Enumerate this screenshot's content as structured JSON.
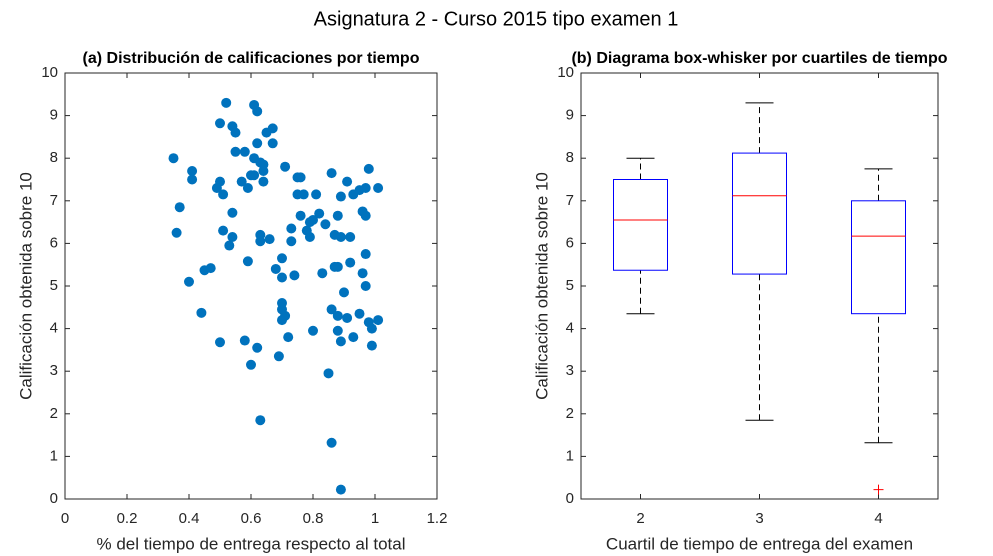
{
  "title": "Asignatura 2 - Curso 2015 tipo examen 1",
  "chart_data": [
    {
      "type": "scatter",
      "title": "(a) Distribución de calificaciones por tiempo",
      "x_label": "% del tiempo de entrega respecto al total",
      "y_label": "Calificación obtenida sobre 10",
      "color": "#0072bd",
      "x": [
        0.35,
        0.36,
        0.37,
        0.4,
        0.41,
        0.41,
        0.44,
        0.45,
        0.47,
        0.49,
        0.5,
        0.5,
        0.5,
        0.51,
        0.51,
        0.52,
        0.53,
        0.54,
        0.54,
        0.54,
        0.55,
        0.55,
        0.57,
        0.58,
        0.58,
        0.59,
        0.59,
        0.6,
        0.6,
        0.61,
        0.61,
        0.61,
        0.62,
        0.62,
        0.62,
        0.63,
        0.63,
        0.63,
        0.63,
        0.64,
        0.64,
        0.64,
        0.65,
        0.66,
        0.67,
        0.67,
        0.68,
        0.69,
        0.7,
        0.7,
        0.7,
        0.7,
        0.7,
        0.71,
        0.71,
        0.72,
        0.73,
        0.73,
        0.74,
        0.75,
        0.76,
        0.75,
        0.76,
        0.77,
        0.78,
        0.79,
        0.79,
        0.8,
        0.8,
        0.81,
        0.82,
        0.83,
        0.84,
        0.85,
        0.86,
        0.86,
        0.86,
        0.87,
        0.87,
        0.88,
        0.88,
        0.88,
        0.88,
        0.89,
        0.89,
        0.89,
        0.89,
        0.9,
        0.91,
        0.91,
        0.92,
        0.92,
        0.93,
        0.93,
        0.95,
        0.95,
        0.96,
        0.96,
        0.97,
        0.97,
        0.97,
        0.98,
        0.98,
        0.99,
        0.99,
        1.01,
        1.01,
        0.97
      ],
      "values": [
        8.0,
        6.25,
        6.85,
        5.1,
        7.7,
        7.5,
        4.37,
        5.37,
        5.42,
        7.3,
        7.45,
        8.82,
        3.68,
        7.15,
        6.3,
        9.3,
        5.95,
        6.72,
        6.15,
        8.75,
        8.6,
        8.15,
        7.45,
        3.72,
        8.15,
        7.3,
        5.58,
        7.6,
        3.15,
        9.25,
        8.0,
        7.6,
        9.1,
        8.35,
        3.55,
        6.2,
        6.05,
        7.9,
        1.85,
        7.85,
        7.7,
        7.45,
        8.6,
        6.1,
        8.7,
        8.35,
        5.4,
        3.35,
        5.65,
        4.6,
        4.45,
        4.2,
        5.2,
        7.8,
        4.3,
        3.8,
        6.05,
        6.35,
        5.25,
        7.55,
        7.55,
        7.15,
        6.65,
        7.15,
        6.3,
        6.15,
        6.5,
        6.55,
        3.95,
        7.15,
        6.7,
        5.3,
        6.45,
        2.95,
        7.65,
        4.45,
        1.32,
        5.45,
        6.2,
        5.45,
        6.65,
        4.3,
        3.95,
        7.1,
        6.15,
        3.7,
        0.22,
        4.85,
        4.25,
        7.45,
        5.55,
        6.15,
        7.15,
        3.8,
        7.25,
        4.35,
        5.3,
        6.75,
        6.65,
        5.75,
        5.0,
        7.75,
        4.15,
        4.0,
        3.6,
        7.3,
        4.2,
        7.3
      ],
      "xlim": [
        0,
        1.2
      ],
      "xticks": [
        0,
        0.2,
        0.4,
        0.6,
        0.8,
        1,
        1.2
      ],
      "ylim": [
        0,
        10
      ],
      "yticks": [
        0,
        1,
        2,
        3,
        4,
        5,
        6,
        7,
        8,
        9,
        10
      ]
    },
    {
      "type": "box",
      "title": "(b) Diagrama box-whisker por cuartiles de tiempo",
      "x_label": "Cuartil de tiempo de entrega del examen",
      "y_label": "Calificación obtenida sobre 10",
      "box_color": "#0000ff",
      "median_color": "#ff0000",
      "whisker_color": "#000000",
      "outlier_color": "#ff0000",
      "categories": [
        "2",
        "3",
        "4"
      ],
      "boxes": [
        {
          "min": 4.35,
          "q1": 5.37,
          "median": 6.55,
          "q3": 7.5,
          "max": 8.0,
          "outliers": []
        },
        {
          "min": 1.85,
          "q1": 5.28,
          "median": 7.12,
          "q3": 8.12,
          "max": 9.3,
          "outliers": []
        },
        {
          "min": 1.32,
          "q1": 4.35,
          "median": 6.17,
          "q3": 7.0,
          "max": 7.75,
          "outliers": [
            0.22
          ]
        }
      ],
      "ylim": [
        0,
        10
      ],
      "yticks": [
        0,
        1,
        2,
        3,
        4,
        5,
        6,
        7,
        8,
        9,
        10
      ]
    }
  ]
}
